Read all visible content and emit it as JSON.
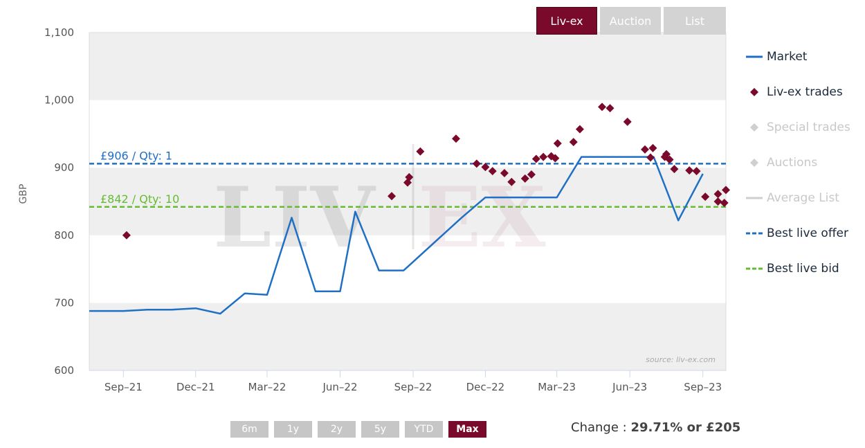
{
  "tabs": [
    {
      "label": "Liv-ex",
      "active": true
    },
    {
      "label": "Auction",
      "active": false
    },
    {
      "label": "List",
      "active": false
    }
  ],
  "legend": [
    {
      "label": "Market",
      "symbol": "line",
      "color": "#1f6fc5",
      "enabled": true
    },
    {
      "label": "Liv-ex trades",
      "symbol": "diamond",
      "color": "#7a0a2b",
      "enabled": true
    },
    {
      "label": "Special trades",
      "symbol": "diamond",
      "color": "#cfcfcf",
      "enabled": false
    },
    {
      "label": "Auctions",
      "symbol": "diamond",
      "color": "#cfcfcf",
      "enabled": false
    },
    {
      "label": "Average List",
      "symbol": "line",
      "color": "#cfcfcf",
      "enabled": false
    },
    {
      "label": "Best live offer",
      "symbol": "dash",
      "color": "#1f6fc5",
      "enabled": true
    },
    {
      "label": "Best live bid",
      "symbol": "dash",
      "color": "#66bb33",
      "enabled": true
    }
  ],
  "ranges": [
    {
      "label": "6m",
      "active": false
    },
    {
      "label": "1y",
      "active": false
    },
    {
      "label": "2y",
      "active": false
    },
    {
      "label": "5y",
      "active": false
    },
    {
      "label": "YTD",
      "active": false
    },
    {
      "label": "Max",
      "active": true
    }
  ],
  "change": {
    "prefix": "Change : ",
    "value": "29.71% or £205"
  },
  "watermark": {
    "left": "LIV",
    "right": "EX"
  },
  "chart_data": {
    "type": "line",
    "ylabel": "GBP",
    "ylim": [
      600,
      1100
    ],
    "yticks": [
      600,
      700,
      800,
      900,
      1000,
      1100
    ],
    "ytick_labels": [
      "600",
      "700",
      "800",
      "900",
      "1,000",
      "1,100"
    ],
    "xlim": [
      "2021-07-20",
      "2023-09-30"
    ],
    "xticks": [
      "2021-09-01",
      "2021-12-01",
      "2022-03-01",
      "2022-06-01",
      "2022-09-01",
      "2022-12-01",
      "2023-03-01",
      "2023-06-01",
      "2023-09-01"
    ],
    "xtick_labels": [
      "Sep–21",
      "Dec–21",
      "Mar–22",
      "Jun–22",
      "Sep–22",
      "Dec–22",
      "Mar–23",
      "Jun–23",
      "Sep–23"
    ],
    "grid": "horizontal bands",
    "legend_position": "right",
    "source": "source: liv-ex.com",
    "series": [
      {
        "name": "Market",
        "kind": "line",
        "color": "#1f6fc5",
        "points": [
          [
            "2021-07-20",
            688
          ],
          [
            "2021-09-01",
            688
          ],
          [
            "2021-10-01",
            690
          ],
          [
            "2021-11-01",
            690
          ],
          [
            "2021-12-01",
            692
          ],
          [
            "2022-01-01",
            684
          ],
          [
            "2022-02-01",
            714
          ],
          [
            "2022-03-01",
            712
          ],
          [
            "2022-04-01",
            826
          ],
          [
            "2022-05-01",
            717
          ],
          [
            "2022-06-01",
            717
          ],
          [
            "2022-06-20",
            835
          ],
          [
            "2022-07-20",
            748
          ],
          [
            "2022-08-20",
            748
          ],
          [
            "2022-11-01",
            826
          ],
          [
            "2022-12-01",
            856
          ],
          [
            "2023-03-01",
            856
          ],
          [
            "2023-04-01",
            916
          ],
          [
            "2023-06-01",
            916
          ],
          [
            "2023-07-01",
            916
          ],
          [
            "2023-08-01",
            822
          ],
          [
            "2023-09-01",
            891
          ]
        ]
      },
      {
        "name": "Liv-ex trades",
        "kind": "scatter",
        "color": "#7a0a2b",
        "points": [
          [
            "2021-09-05",
            800
          ],
          [
            "2022-08-05",
            858
          ],
          [
            "2022-08-25",
            878
          ],
          [
            "2022-08-27",
            886
          ],
          [
            "2022-09-10",
            924
          ],
          [
            "2022-10-25",
            943
          ],
          [
            "2022-11-20",
            906
          ],
          [
            "2022-12-01",
            901
          ],
          [
            "2022-12-10",
            895
          ],
          [
            "2022-12-25",
            892
          ],
          [
            "2023-01-03",
            879
          ],
          [
            "2023-01-20",
            884
          ],
          [
            "2023-01-28",
            890
          ],
          [
            "2023-02-03",
            913
          ],
          [
            "2023-02-12",
            916
          ],
          [
            "2023-02-22",
            917
          ],
          [
            "2023-02-27",
            914
          ],
          [
            "2023-03-02",
            936
          ],
          [
            "2023-03-22",
            938
          ],
          [
            "2023-03-30",
            957
          ],
          [
            "2023-04-27",
            990
          ],
          [
            "2023-05-07",
            988
          ],
          [
            "2023-05-29",
            968
          ],
          [
            "2023-06-20",
            927
          ],
          [
            "2023-06-27",
            915
          ],
          [
            "2023-06-30",
            929
          ],
          [
            "2023-07-15",
            916
          ],
          [
            "2023-07-17",
            920
          ],
          [
            "2023-07-21",
            912
          ],
          [
            "2023-07-27",
            898
          ],
          [
            "2023-08-15",
            896
          ],
          [
            "2023-08-24",
            895
          ],
          [
            "2023-09-04",
            857
          ],
          [
            "2023-09-20",
            861
          ],
          [
            "2023-09-20",
            850
          ],
          [
            "2023-09-28",
            848
          ],
          [
            "2023-09-30",
            867
          ]
        ]
      }
    ],
    "reference_lines": [
      {
        "name": "Best live offer",
        "value": 906,
        "label": "£906 / Qty: 1",
        "color": "#1f6fc5",
        "style": "dashed"
      },
      {
        "name": "Best live bid",
        "value": 842,
        "label": "£842 / Qty: 10",
        "color": "#66bb33",
        "style": "dashed"
      }
    ]
  }
}
